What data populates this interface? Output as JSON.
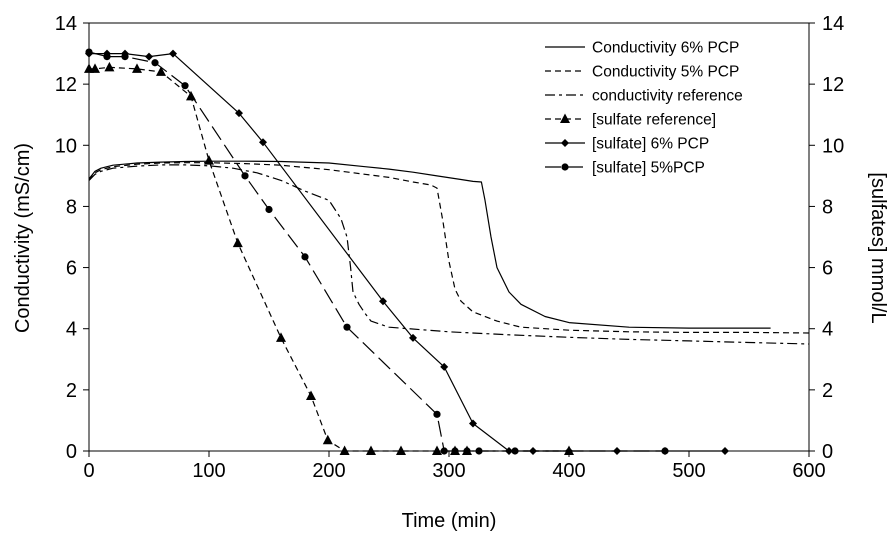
{
  "chart_data": {
    "type": "line",
    "title": "",
    "xlabel": "Time (min)",
    "ylabel_left": "Conductivity (mS/cm)",
    "ylabel_right": "[sulfates]  mmol/L",
    "xlim": [
      0,
      600
    ],
    "ylim_left": [
      0,
      14
    ],
    "ylim_right": [
      0,
      14
    ],
    "x_ticks": [
      "0",
      "100",
      "200",
      "300",
      "400",
      "500",
      "600"
    ],
    "y_ticks_left": [
      "0",
      "2",
      "4",
      "6",
      "8",
      "10",
      "12",
      "14"
    ],
    "y_ticks_right": [
      "0",
      "2",
      "4",
      "6",
      "8",
      "10",
      "12",
      "14"
    ],
    "grid": false,
    "legend_position": "top-right",
    "series": [
      {
        "name": "Conductivity 6% PCP",
        "axis": "left",
        "style": "solid",
        "marker": "none",
        "x": [
          0,
          5,
          10,
          20,
          40,
          60,
          80,
          100,
          130,
          160,
          200,
          230,
          250,
          270,
          290,
          310,
          320,
          327,
          330,
          335,
          340,
          350,
          360,
          380,
          400,
          450,
          500,
          568
        ],
        "y": [
          8.9,
          9.15,
          9.25,
          9.35,
          9.42,
          9.45,
          9.47,
          9.48,
          9.48,
          9.47,
          9.42,
          9.3,
          9.22,
          9.12,
          9.0,
          8.88,
          8.82,
          8.8,
          8.2,
          7.0,
          6.0,
          5.2,
          4.8,
          4.4,
          4.2,
          4.05,
          4.02,
          4.02
        ]
      },
      {
        "name": "Conductivity 5% PCP",
        "axis": "left",
        "style": "dashed",
        "marker": "none",
        "x": [
          0,
          5,
          10,
          20,
          40,
          60,
          80,
          100,
          130,
          160,
          200,
          230,
          250,
          270,
          285,
          290,
          295,
          300,
          305,
          310,
          320,
          340,
          360,
          400,
          450,
          500,
          550,
          600
        ],
        "y": [
          8.85,
          9.1,
          9.2,
          9.3,
          9.38,
          9.42,
          9.43,
          9.43,
          9.4,
          9.35,
          9.2,
          9.05,
          8.95,
          8.8,
          8.7,
          8.6,
          7.5,
          6.2,
          5.3,
          4.9,
          4.55,
          4.25,
          4.05,
          3.95,
          3.9,
          3.88,
          3.88,
          3.86
        ]
      },
      {
        "name": "conductivity reference",
        "axis": "left",
        "style": "dash-dot",
        "marker": "none",
        "x": [
          0,
          5,
          10,
          20,
          40,
          60,
          80,
          100,
          120,
          140,
          160,
          180,
          200,
          210,
          215,
          218,
          220,
          225,
          230,
          235,
          250,
          300,
          350,
          400,
          450,
          500,
          550,
          600
        ],
        "y": [
          8.85,
          9.05,
          9.15,
          9.25,
          9.32,
          9.36,
          9.36,
          9.33,
          9.25,
          9.1,
          8.85,
          8.5,
          8.2,
          7.6,
          7.0,
          6.0,
          5.2,
          4.8,
          4.5,
          4.25,
          4.05,
          3.9,
          3.8,
          3.72,
          3.65,
          3.6,
          3.55,
          3.5
        ]
      },
      {
        "name": "[sulfate reference]",
        "axis": "right",
        "style": "dashed",
        "marker": "triangle",
        "x": [
          0,
          5,
          17,
          40,
          60,
          85,
          100,
          124,
          160,
          185,
          199,
          213,
          235,
          260,
          290,
          305,
          315,
          400
        ],
        "y": [
          12.5,
          12.5,
          12.55,
          12.5,
          12.4,
          11.6,
          9.5,
          6.8,
          3.7,
          1.8,
          0.35,
          0.0,
          0.0,
          0.0,
          0.0,
          0.0,
          0.0,
          0.0
        ]
      },
      {
        "name": "[sulfate] 6% PCP",
        "axis": "right",
        "style": "solid",
        "marker": "diamond",
        "x": [
          0,
          15,
          30,
          50,
          70,
          125,
          145,
          245,
          270,
          296,
          320,
          350,
          370,
          400,
          440,
          480,
          530
        ],
        "y": [
          13.0,
          13.0,
          13.0,
          12.9,
          13.0,
          11.05,
          10.1,
          4.9,
          3.7,
          2.75,
          0.9,
          0.0,
          0.0,
          0.0,
          0.0,
          0.0,
          0.0
        ]
      },
      {
        "name": "[sulfate] 5%PCP",
        "axis": "right",
        "style": "long-dash",
        "marker": "circle",
        "x": [
          0,
          15,
          30,
          55,
          80,
          130,
          150,
          180,
          215,
          290,
          296,
          305,
          315,
          325,
          355,
          480
        ],
        "y": [
          13.05,
          12.9,
          12.9,
          12.7,
          11.95,
          9.0,
          7.9,
          6.35,
          4.05,
          1.2,
          0.0,
          0.0,
          0.0,
          0.0,
          0.0,
          0.0
        ]
      }
    ]
  }
}
